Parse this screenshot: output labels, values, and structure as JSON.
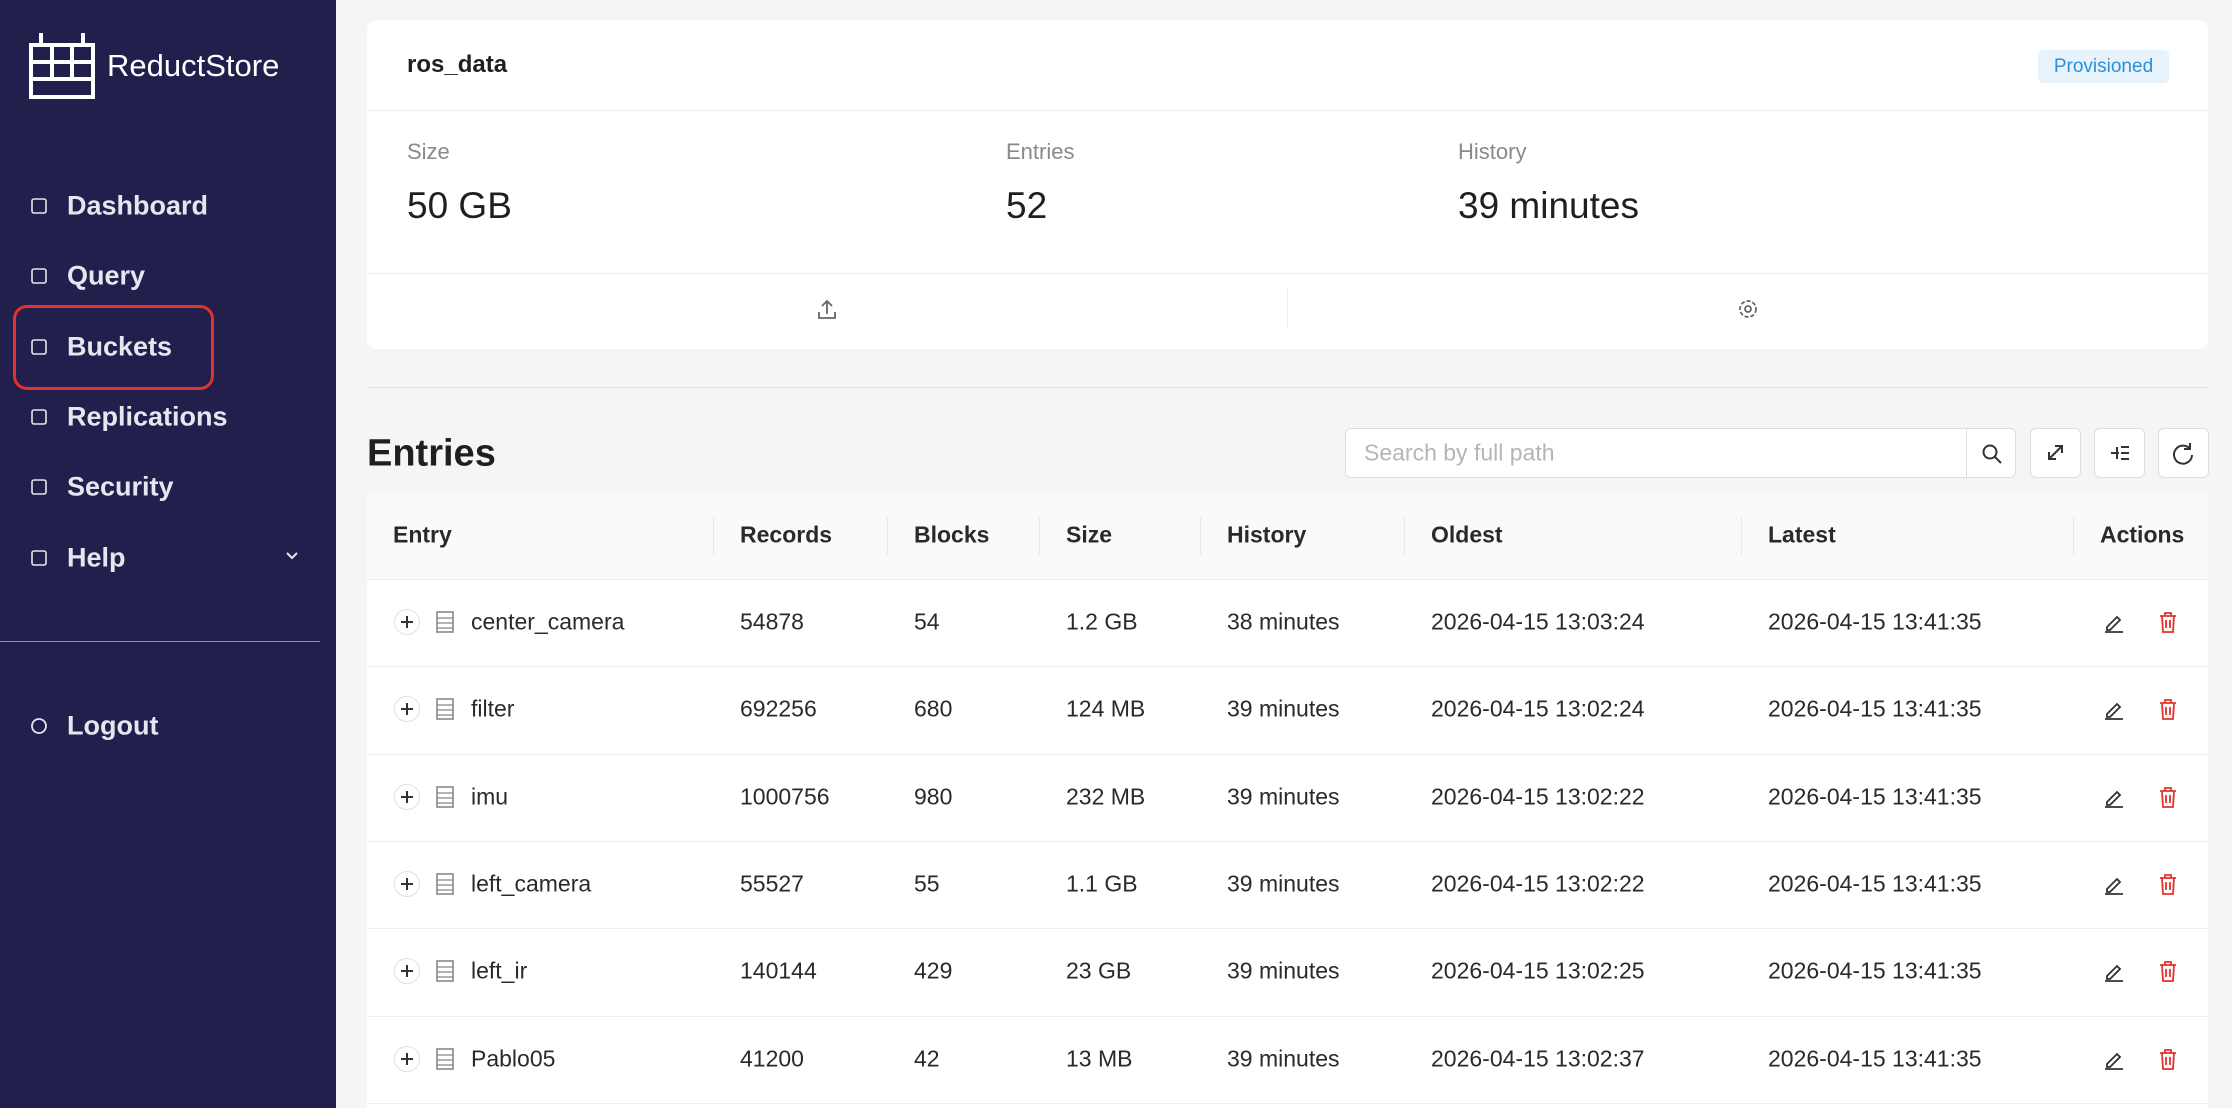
{
  "sidebar": {
    "brand": "ReductStore",
    "nav": [
      "Dashboard",
      "Query",
      "Buckets",
      "Replications",
      "Security",
      "Help"
    ],
    "logout": "Logout"
  },
  "bucket": {
    "name": "ros_data",
    "badge": "Provisioned",
    "stats": [
      {
        "label": "Size",
        "value": "50 GB"
      },
      {
        "label": "Entries",
        "value": "52"
      },
      {
        "label": "History",
        "value": "39 minutes"
      }
    ]
  },
  "entries": {
    "title": "Entries",
    "search_placeholder": "Search by full path",
    "columns": [
      "Entry",
      "Records",
      "Blocks",
      "Size",
      "History",
      "Oldest",
      "Latest",
      "Actions"
    ],
    "rows": [
      [
        "center_camera",
        "54878",
        "54",
        "1.2 GB",
        "38 minutes",
        "2026-04-15 13:03:24",
        "2026-04-15 13:41:35"
      ],
      [
        "filter",
        "692256",
        "680",
        "124 MB",
        "39 minutes",
        "2026-04-15 13:02:24",
        "2026-04-15 13:41:35"
      ],
      [
        "imu",
        "1000756",
        "980",
        "232 MB",
        "39 minutes",
        "2026-04-15 13:02:22",
        "2026-04-15 13:41:35"
      ],
      [
        "left_camera",
        "55527",
        "55",
        "1.1 GB",
        "39 minutes",
        "2026-04-15 13:02:22",
        "2026-04-15 13:41:35"
      ],
      [
        "left_ir",
        "140144",
        "429",
        "23 GB",
        "39 minutes",
        "2026-04-15 13:02:25",
        "2026-04-15 13:41:35"
      ],
      [
        "Pablo05",
        "41200",
        "42",
        "13 MB",
        "39 minutes",
        "2026-04-15 13:02:37",
        "2026-04-15 13:41:35"
      ]
    ]
  }
}
